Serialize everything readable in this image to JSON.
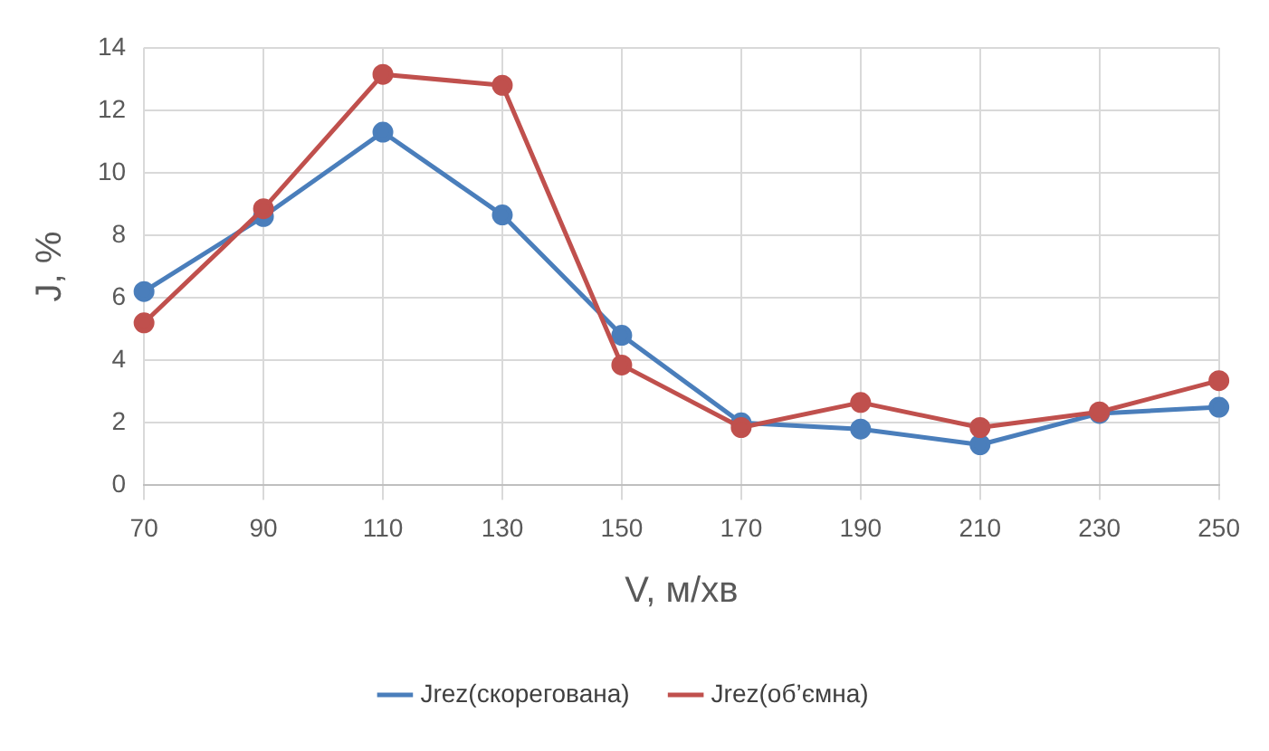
{
  "chart_data": {
    "type": "line",
    "xlabel": "V, м/хв",
    "ylabel": "J, %",
    "categories": [
      "70",
      "90",
      "110",
      "130",
      "150",
      "170",
      "190",
      "210",
      "230",
      "250"
    ],
    "series": [
      {
        "name": "Jrez(скорегована)",
        "color": "#4a7ebb",
        "values": [
          6.2,
          8.6,
          11.3,
          8.65,
          4.8,
          2.0,
          1.8,
          1.3,
          2.3,
          2.5
        ]
      },
      {
        "name": "Jrez(об’ємна)",
        "color": "#c0504d",
        "values": [
          5.2,
          8.85,
          13.15,
          12.8,
          3.85,
          1.85,
          2.65,
          1.85,
          2.35,
          3.35
        ]
      }
    ],
    "ylim": [
      0,
      14
    ],
    "yticks": [
      0,
      2,
      4,
      6,
      8,
      10,
      12,
      14
    ],
    "grid": true,
    "legend": "bottom",
    "marker": "circle",
    "line_style": "solid"
  }
}
